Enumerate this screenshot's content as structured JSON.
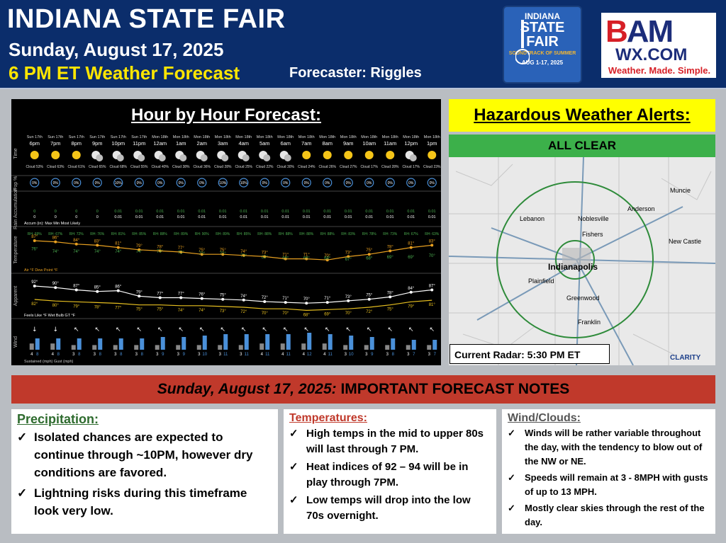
{
  "header": {
    "title": "INDIANA STATE FAIR",
    "date": "Sunday, August 17, 2025",
    "subtitle": "6 PM ET Weather Forecast",
    "forecaster": "Forecaster: Riggles"
  },
  "fair_logo": {
    "line1": "INDIANA",
    "line2": "STATE",
    "line3": "FAIR",
    "line4": "SOUNDTRACK OF SUMMER",
    "line5": "AUG 1-17, 2025"
  },
  "bam_logo": {
    "brand": "BAM",
    "domain": "WX.COM",
    "tagline": "Weather. Made. Simple."
  },
  "hourly": {
    "title": "Hour by Hour Forecast:",
    "row_labels": [
      "Time",
      "Pop %",
      "Rain Accumulation",
      "Temperature",
      "Apparent",
      "Wind"
    ],
    "columns": [
      {
        "day": "Sun 17th",
        "hour": "6pm",
        "cloud": "Cloud 53%",
        "pop": "0%",
        "rain": "0",
        "temp": "87°",
        "dew": "76°",
        "feels": "92°",
        "wb": "82°",
        "ws": "4",
        "wg": "8",
        "rh": "RH: 69%"
      },
      {
        "day": "Sun 17th",
        "hour": "7pm",
        "cloud": "Cloud 63%",
        "pop": "0%",
        "rain": "0",
        "temp": "86°",
        "dew": "74°",
        "feels": "90°",
        "wb": "80°",
        "ws": "4",
        "wg": "8",
        "rh": "RH: 67%"
      },
      {
        "day": "Sun 17th",
        "hour": "8pm",
        "cloud": "Cloud 61%",
        "pop": "0%",
        "rain": "0",
        "temp": "84°",
        "dew": "74°",
        "feels": "87°",
        "wb": "79°",
        "ws": "3",
        "wg": "8",
        "rh": "RH: 72%"
      },
      {
        "day": "Sun 17th",
        "hour": "9pm",
        "cloud": "Cloud 65%",
        "pop": "0%",
        "rain": "0",
        "temp": "83°",
        "dew": "74°",
        "feels": "85°",
        "wb": "78°",
        "ws": "3",
        "wg": "8",
        "rh": "RH: 76%"
      },
      {
        "day": "Sun 17th",
        "hour": "10pm",
        "cloud": "Cloud 68%",
        "pop": "10%",
        "rain": "0.01",
        "temp": "81°",
        "dew": "74°",
        "feels": "86°",
        "wb": "77°",
        "ws": "3",
        "wg": "8",
        "rh": "RH: 81%"
      },
      {
        "day": "Sun 17th",
        "hour": "11pm",
        "cloud": "Cloud 55%",
        "pop": "0%",
        "rain": "0.01",
        "temp": "79°",
        "dew": "74°",
        "feels": "79°",
        "wb": "75°",
        "ws": "3",
        "wg": "8",
        "rh": "RH: 85%"
      },
      {
        "day": "Mon 18th",
        "hour": "12am",
        "cloud": "Cloud 40%",
        "pop": "0%",
        "rain": "0.01",
        "temp": "78°",
        "dew": "74°",
        "feels": "77°",
        "wb": "75°",
        "ws": "3",
        "wg": "9",
        "rh": "RH: 88%"
      },
      {
        "day": "Mon 18th",
        "hour": "1am",
        "cloud": "Cloud 38%",
        "pop": "0%",
        "rain": "0.01",
        "temp": "77°",
        "dew": "73°",
        "feels": "77°",
        "wb": "74°",
        "ws": "3",
        "wg": "9",
        "rh": "RH: 89%"
      },
      {
        "day": "Mon 18th",
        "hour": "2am",
        "cloud": "Cloud 36%",
        "pop": "0%",
        "rain": "0.01",
        "temp": "75°",
        "dew": "72°",
        "feels": "76°",
        "wb": "74°",
        "ws": "3",
        "wg": "10",
        "rh": "RH: 90%"
      },
      {
        "day": "Mon 18th",
        "hour": "3am",
        "cloud": "Cloud 28%",
        "pop": "10%",
        "rain": "0.01",
        "temp": "75°",
        "dew": "72°",
        "feels": "75°",
        "wb": "73°",
        "ws": "3",
        "wg": "11",
        "rh": "RH: 89%"
      },
      {
        "day": "Mon 18th",
        "hour": "4am",
        "cloud": "Cloud 25%",
        "pop": "10%",
        "rain": "0.01",
        "temp": "74°",
        "dew": "70°",
        "feels": "74°",
        "wb": "72°",
        "ws": "3",
        "wg": "11",
        "rh": "RH: 85%"
      },
      {
        "day": "Mon 18th",
        "hour": "5am",
        "cloud": "Cloud 22%",
        "pop": "0%",
        "rain": "0.01",
        "temp": "73°",
        "dew": "69°",
        "feels": "72°",
        "wb": "70°",
        "ws": "4",
        "wg": "11",
        "rh": "RH: 88%"
      },
      {
        "day": "Mon 18th",
        "hour": "6am",
        "cloud": "Cloud 30%",
        "pop": "0%",
        "rain": "0.01",
        "temp": "71°",
        "dew": "68°",
        "feels": "71°",
        "wb": "70°",
        "ws": "4",
        "wg": "11",
        "rh": "RH: 88%"
      },
      {
        "day": "Mon 18th",
        "hour": "7am",
        "cloud": "Cloud 24%",
        "pop": "0%",
        "rain": "0.01",
        "temp": "71°",
        "dew": "68°",
        "feels": "70°",
        "wb": "68°",
        "ws": "4",
        "wg": "12",
        "rh": "RH: 88%"
      },
      {
        "day": "Mon 18th",
        "hour": "8am",
        "cloud": "Cloud 26%",
        "pop": "0%",
        "rain": "0.01",
        "temp": "70°",
        "dew": "68°",
        "feels": "71°",
        "wb": "69°",
        "ws": "4",
        "wg": "11",
        "rh": "RH: 88%"
      },
      {
        "day": "Mon 18th",
        "hour": "9am",
        "cloud": "Cloud 27%",
        "pop": "0%",
        "rain": "0.01",
        "temp": "73°",
        "dew": "67°",
        "feels": "73°",
        "wb": "70°",
        "ws": "3",
        "wg": "10",
        "rh": "RH: 83%"
      },
      {
        "day": "Mon 18th",
        "hour": "10am",
        "cloud": "Cloud 17%",
        "pop": "0%",
        "rain": "0.01",
        "temp": "75°",
        "dew": "68°",
        "feels": "75°",
        "wb": "72°",
        "ws": "3",
        "wg": "9",
        "rh": "RH: 78%"
      },
      {
        "day": "Mon 18th",
        "hour": "11am",
        "cloud": "Cloud 28%",
        "pop": "0%",
        "rain": "0.01",
        "temp": "78°",
        "dew": "69°",
        "feels": "78°",
        "wb": "75°",
        "ws": "3",
        "wg": "8",
        "rh": "RH: 73%"
      },
      {
        "day": "Mon 18th",
        "hour": "12pm",
        "cloud": "Cloud 17%",
        "pop": "0%",
        "rain": "0.01",
        "temp": "81°",
        "dew": "69°",
        "feels": "84°",
        "wb": "79°",
        "ws": "3",
        "wg": "7",
        "rh": "RH: 67%"
      },
      {
        "day": "Mon 18th",
        "hour": "1pm",
        "cloud": "Cloud 23%",
        "pop": "0%",
        "rain": "0.01",
        "temp": "83°",
        "dew": "70°",
        "feels": "87°",
        "wb": "81°",
        "ws": "3",
        "wg": "7",
        "rh": "RH: 63%"
      }
    ],
    "legend_accum": "Accum (in):  Max   Min   Most Likely",
    "legend_temp": "Air °F   Dew Point °F",
    "legend_apparent": "Feels Like °F   Wet Bulb GT °F",
    "legend_wind": "Sustained (mph)   Gust (mph)",
    "colors": {
      "temp": "#e8a020",
      "dew": "#4caf50",
      "feels": "#ffffff",
      "wb": "#e8c020",
      "gust": "#4a90d9",
      "sustained": "#888888"
    }
  },
  "alerts": {
    "title": "Hazardous Weather Alerts:",
    "status": "ALL CLEAR"
  },
  "radar": {
    "caption": "Current Radar: 5:30 PM ET",
    "cities": [
      "Muncie",
      "Anderson",
      "Noblesville",
      "Lebanon",
      "Fishers",
      "New Castle",
      "Indianapolis",
      "Plainfield",
      "Greenwood",
      "Franklin"
    ],
    "brand": "CLARITY"
  },
  "notes": {
    "bar_italic": "Sunday, August 17, 2025:",
    "bar_rest": " IMPORTANT FORECAST NOTES",
    "precip": {
      "title": "Precipitation:",
      "items": [
        "Isolated chances are expected to continue through ~10PM, however dry conditions are favored.",
        "Lightning risks during this timeframe look very low."
      ]
    },
    "temps": {
      "title": "Temperatures:",
      "items": [
        "High temps in the mid to upper 80s will last through 7 PM.",
        "Heat indices of 92 – 94 will be in play through 7PM.",
        "Low temps will drop into the low 70s overnight."
      ]
    },
    "wind": {
      "title": "Wind/Clouds:",
      "items": [
        "Winds will be rather variable throughout the day, with the tendency to blow out of the NW or NE.",
        "Speeds will remain at 3 - 8MPH with gusts of up to 13 MPH.",
        "Mostly clear skies through the rest of the day."
      ]
    },
    "check": "✓"
  }
}
